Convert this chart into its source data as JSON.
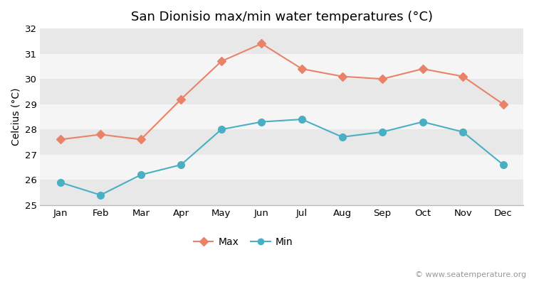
{
  "title": "San Dionisio max/min water temperatures (°C)",
  "ylabel": "Celcius (°C)",
  "months": [
    "Jan",
    "Feb",
    "Mar",
    "Apr",
    "May",
    "Jun",
    "Jul",
    "Aug",
    "Sep",
    "Oct",
    "Nov",
    "Dec"
  ],
  "max_values": [
    27.6,
    27.8,
    27.6,
    29.2,
    30.7,
    31.4,
    30.4,
    30.1,
    30.0,
    30.4,
    30.1,
    29.0
  ],
  "min_values": [
    25.9,
    25.4,
    26.2,
    26.6,
    28.0,
    28.3,
    28.4,
    27.7,
    27.9,
    28.3,
    27.9,
    26.6
  ],
  "max_color": "#e8836a",
  "min_color": "#4bafc4",
  "fig_bg_color": "#ffffff",
  "plot_bg_color_light": "#f5f5f5",
  "plot_bg_color_dark": "#e8e8e8",
  "grid_color": "#ffffff",
  "ylim": [
    25,
    32
  ],
  "yticks": [
    25,
    26,
    27,
    28,
    29,
    30,
    31,
    32
  ],
  "legend_labels": [
    "Max",
    "Min"
  ],
  "watermark": "© www.seatemperature.org",
  "title_fontsize": 13,
  "label_fontsize": 10,
  "tick_fontsize": 9.5,
  "watermark_fontsize": 8
}
